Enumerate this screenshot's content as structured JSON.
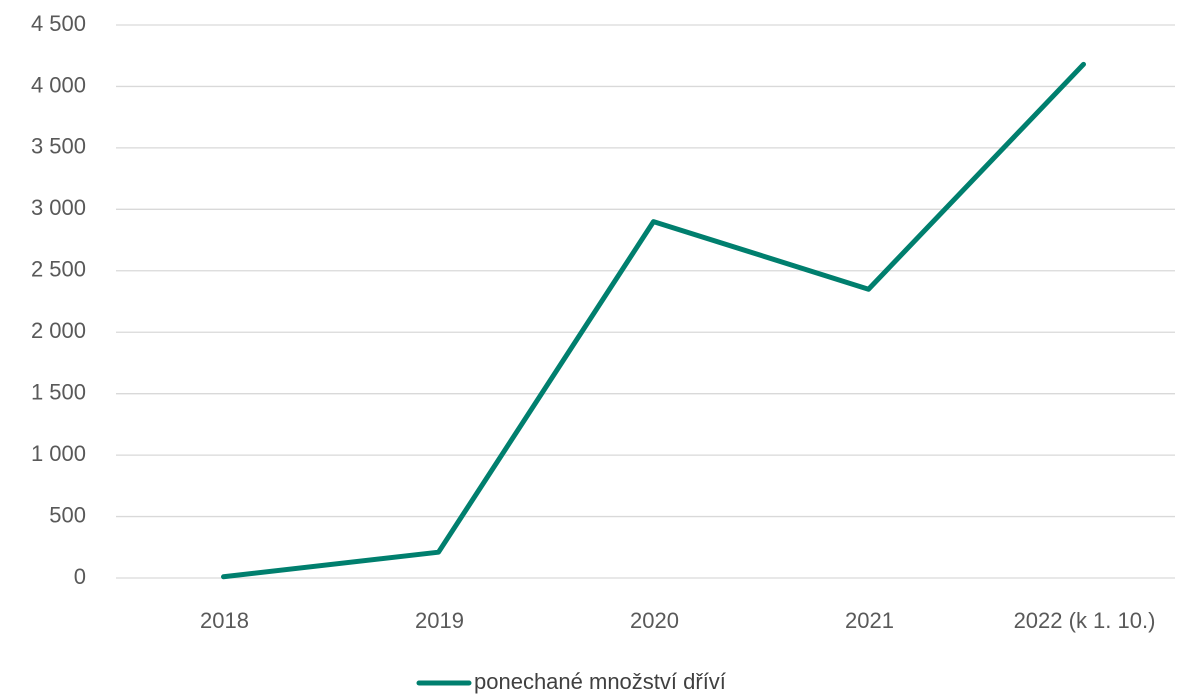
{
  "chart_data": {
    "type": "line",
    "categories": [
      "2018",
      "2019",
      "2020",
      "2021",
      "2022 (k 1. 10.)"
    ],
    "series": [
      {
        "name": "ponechané množství dříví",
        "color": "#007f6e",
        "values": [
          10,
          210,
          2900,
          2350,
          4180
        ]
      }
    ],
    "ylim": [
      0,
      4500
    ],
    "yticks": [
      0,
      500,
      {
        "value": 1000,
        "label": "1 000"
      },
      {
        "value": 1500,
        "label": "1 500"
      },
      {
        "value": 2000,
        "label": "2 000"
      },
      {
        "value": 2500,
        "label": "2 500"
      },
      {
        "value": 3000,
        "label": "3 000"
      },
      {
        "value": 3500,
        "label": "3 500"
      },
      {
        "value": 4000,
        "label": "4 000"
      },
      {
        "value": 4500,
        "label": "4 500"
      }
    ],
    "grid": true,
    "legend": "bottom"
  }
}
